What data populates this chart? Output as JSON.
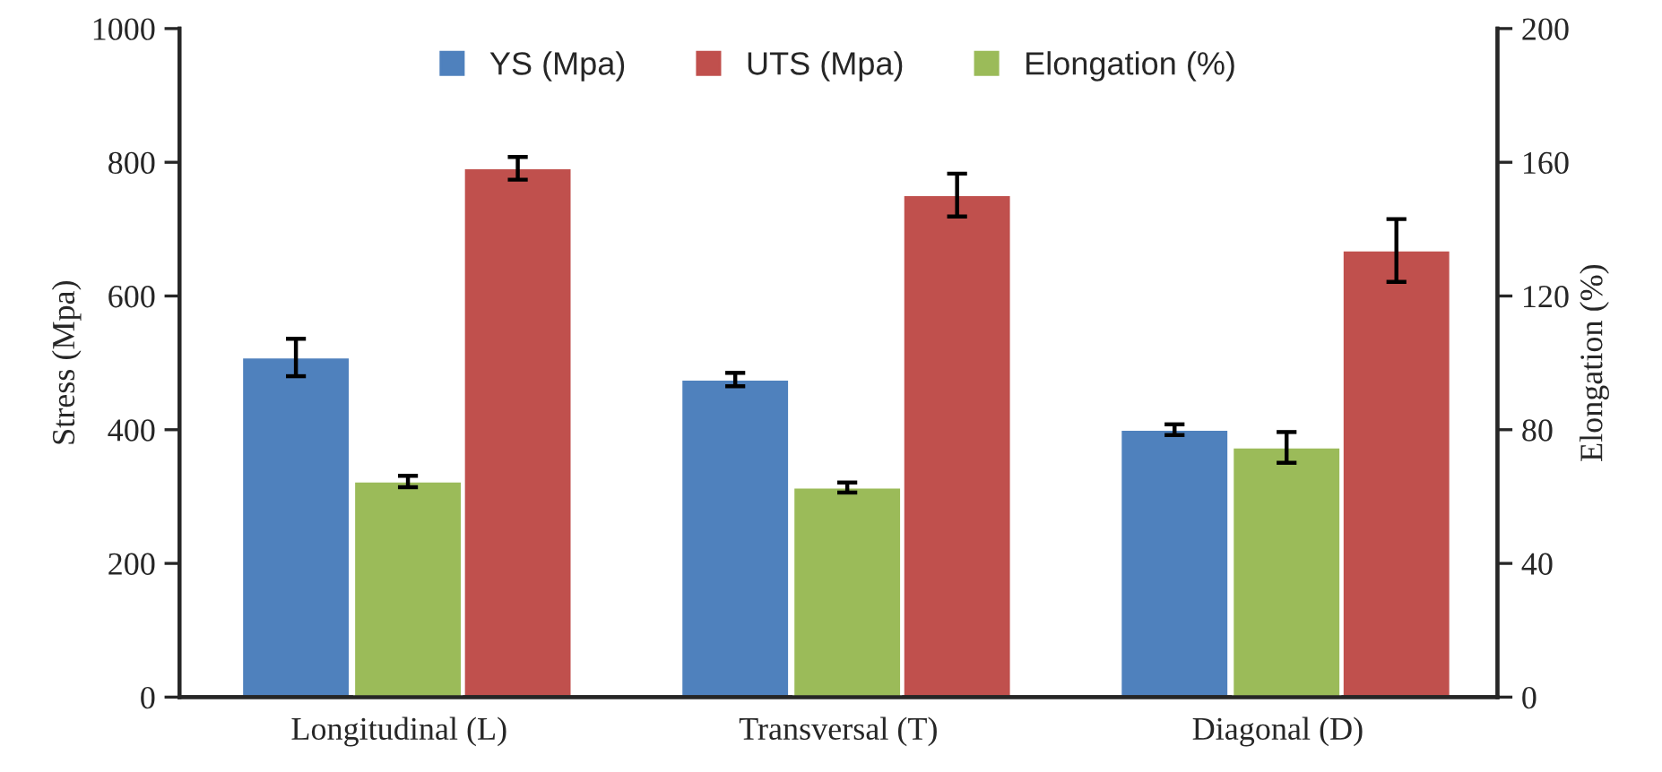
{
  "chart_data": {
    "type": "bar",
    "categories": [
      "Longitudinal (L)",
      "Transversal (T)",
      "Diagonal (D)"
    ],
    "ylabel": "Stress (Mpa)",
    "y2label": "Elongation (%)",
    "ylim": [
      0,
      1000
    ],
    "yticks": [
      0,
      200,
      400,
      600,
      800,
      1000
    ],
    "y2lim": [
      0,
      200
    ],
    "y2ticks": [
      0,
      40,
      80,
      120,
      160,
      200
    ],
    "legend": "top",
    "grid": false,
    "series": [
      {
        "name": "YS (Mpa)",
        "color": "#4f81bd",
        "values": [
          508,
          475,
          400
        ],
        "errors": [
          28,
          10,
          8
        ]
      },
      {
        "name": "UTS (Mpa)",
        "color": "#c0504d",
        "values": [
          791,
          751,
          668
        ],
        "errors": [
          17,
          32,
          47
        ]
      },
      {
        "name": "Elongation (%)",
        "color": "#9bbb59",
        "axis": "y2",
        "values": [
          64.5,
          62.7,
          74.7
        ],
        "errors": [
          1.7,
          1.5,
          4.6
        ]
      }
    ]
  }
}
